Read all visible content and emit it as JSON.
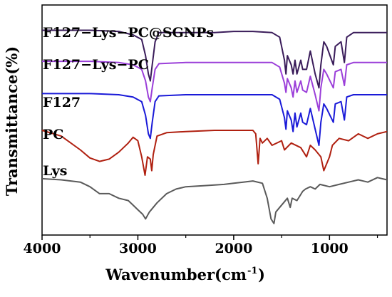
{
  "chart_data": {
    "type": "line",
    "xlabel": "Wavenumber(cm",
    "xlabel_sup": "-1",
    "xlabel_tail": ")",
    "ylabel": "Transmittance(%)",
    "x_ticks": [
      "4000",
      "3000",
      "2000",
      "1000"
    ],
    "xlim": [
      4000,
      400
    ],
    "x_reversed": true,
    "y_ticks_shown": false,
    "grid": false,
    "legend": "none (series names printed above each curve)",
    "series": [
      {
        "name": "F127−Lys−PC@SGNPs",
        "color": "#3a1c5a",
        "points": [
          [
            4000,
            0.11
          ],
          [
            3500,
            0.11
          ],
          [
            3200,
            0.115
          ],
          [
            3050,
            0.13
          ],
          [
            2960,
            0.15
          ],
          [
            2920,
            0.22
          ],
          [
            2890,
            0.3
          ],
          [
            2870,
            0.33
          ],
          [
            2850,
            0.26
          ],
          [
            2820,
            0.16
          ],
          [
            2780,
            0.12
          ],
          [
            2500,
            0.12
          ],
          [
            2200,
            0.12
          ],
          [
            2000,
            0.115
          ],
          [
            1800,
            0.115
          ],
          [
            1600,
            0.12
          ],
          [
            1520,
            0.14
          ],
          [
            1470,
            0.24
          ],
          [
            1455,
            0.3
          ],
          [
            1440,
            0.22
          ],
          [
            1400,
            0.26
          ],
          [
            1380,
            0.3
          ],
          [
            1360,
            0.24
          ],
          [
            1340,
            0.3
          ],
          [
            1300,
            0.24
          ],
          [
            1280,
            0.28
          ],
          [
            1240,
            0.28
          ],
          [
            1200,
            0.2
          ],
          [
            1150,
            0.3
          ],
          [
            1110,
            0.36
          ],
          [
            1090,
            0.26
          ],
          [
            1060,
            0.16
          ],
          [
            1030,
            0.18
          ],
          [
            960,
            0.26
          ],
          [
            940,
            0.18
          ],
          [
            880,
            0.16
          ],
          [
            845,
            0.25
          ],
          [
            820,
            0.14
          ],
          [
            750,
            0.12
          ],
          [
            500,
            0.12
          ],
          [
            400,
            0.12
          ]
        ]
      },
      {
        "name": "F127−Lys−PC",
        "color": "#9b3fd9",
        "points": [
          [
            4000,
            0.245
          ],
          [
            3500,
            0.245
          ],
          [
            3200,
            0.25
          ],
          [
            3050,
            0.26
          ],
          [
            2960,
            0.28
          ],
          [
            2920,
            0.33
          ],
          [
            2890,
            0.4
          ],
          [
            2870,
            0.42
          ],
          [
            2850,
            0.36
          ],
          [
            2820,
            0.28
          ],
          [
            2780,
            0.255
          ],
          [
            2500,
            0.25
          ],
          [
            2200,
            0.25
          ],
          [
            2000,
            0.25
          ],
          [
            1800,
            0.25
          ],
          [
            1600,
            0.25
          ],
          [
            1520,
            0.27
          ],
          [
            1470,
            0.34
          ],
          [
            1455,
            0.38
          ],
          [
            1440,
            0.32
          ],
          [
            1400,
            0.36
          ],
          [
            1380,
            0.4
          ],
          [
            1360,
            0.33
          ],
          [
            1340,
            0.38
          ],
          [
            1300,
            0.33
          ],
          [
            1280,
            0.37
          ],
          [
            1240,
            0.38
          ],
          [
            1200,
            0.31
          ],
          [
            1150,
            0.39
          ],
          [
            1110,
            0.46
          ],
          [
            1090,
            0.36
          ],
          [
            1060,
            0.28
          ],
          [
            1030,
            0.3
          ],
          [
            960,
            0.36
          ],
          [
            940,
            0.29
          ],
          [
            880,
            0.28
          ],
          [
            845,
            0.35
          ],
          [
            820,
            0.26
          ],
          [
            750,
            0.25
          ],
          [
            500,
            0.25
          ],
          [
            400,
            0.25
          ]
        ]
      },
      {
        "name": "F127",
        "color": "#1a1ad8",
        "points": [
          [
            4000,
            0.385
          ],
          [
            3500,
            0.385
          ],
          [
            3200,
            0.39
          ],
          [
            3050,
            0.4
          ],
          [
            2960,
            0.42
          ],
          [
            2920,
            0.48
          ],
          [
            2890,
            0.56
          ],
          [
            2870,
            0.58
          ],
          [
            2850,
            0.51
          ],
          [
            2820,
            0.42
          ],
          [
            2780,
            0.395
          ],
          [
            2500,
            0.39
          ],
          [
            2200,
            0.39
          ],
          [
            2000,
            0.39
          ],
          [
            1800,
            0.39
          ],
          [
            1600,
            0.39
          ],
          [
            1520,
            0.41
          ],
          [
            1470,
            0.49
          ],
          [
            1455,
            0.54
          ],
          [
            1440,
            0.46
          ],
          [
            1400,
            0.5
          ],
          [
            1380,
            0.55
          ],
          [
            1360,
            0.47
          ],
          [
            1340,
            0.53
          ],
          [
            1300,
            0.47
          ],
          [
            1280,
            0.51
          ],
          [
            1240,
            0.52
          ],
          [
            1200,
            0.45
          ],
          [
            1150,
            0.54
          ],
          [
            1110,
            0.61
          ],
          [
            1090,
            0.51
          ],
          [
            1060,
            0.43
          ],
          [
            1030,
            0.45
          ],
          [
            960,
            0.51
          ],
          [
            940,
            0.43
          ],
          [
            880,
            0.42
          ],
          [
            845,
            0.5
          ],
          [
            820,
            0.4
          ],
          [
            750,
            0.39
          ],
          [
            500,
            0.39
          ],
          [
            400,
            0.39
          ]
        ]
      },
      {
        "name": "PC",
        "color": "#b02010",
        "points": [
          [
            4000,
            0.545
          ],
          [
            3800,
            0.57
          ],
          [
            3600,
            0.63
          ],
          [
            3500,
            0.665
          ],
          [
            3400,
            0.68
          ],
          [
            3300,
            0.67
          ],
          [
            3200,
            0.64
          ],
          [
            3100,
            0.6
          ],
          [
            3050,
            0.575
          ],
          [
            3000,
            0.59
          ],
          [
            2960,
            0.66
          ],
          [
            2925,
            0.74
          ],
          [
            2900,
            0.66
          ],
          [
            2870,
            0.67
          ],
          [
            2855,
            0.72
          ],
          [
            2840,
            0.65
          ],
          [
            2800,
            0.57
          ],
          [
            2700,
            0.555
          ],
          [
            2500,
            0.55
          ],
          [
            2200,
            0.545
          ],
          [
            2000,
            0.545
          ],
          [
            1800,
            0.545
          ],
          [
            1770,
            0.56
          ],
          [
            1745,
            0.69
          ],
          [
            1725,
            0.58
          ],
          [
            1700,
            0.6
          ],
          [
            1650,
            0.58
          ],
          [
            1600,
            0.61
          ],
          [
            1500,
            0.59
          ],
          [
            1470,
            0.63
          ],
          [
            1400,
            0.6
          ],
          [
            1300,
            0.62
          ],
          [
            1240,
            0.66
          ],
          [
            1200,
            0.61
          ],
          [
            1150,
            0.63
          ],
          [
            1090,
            0.66
          ],
          [
            1060,
            0.72
          ],
          [
            1000,
            0.66
          ],
          [
            970,
            0.61
          ],
          [
            900,
            0.58
          ],
          [
            800,
            0.59
          ],
          [
            700,
            0.56
          ],
          [
            600,
            0.58
          ],
          [
            500,
            0.56
          ],
          [
            400,
            0.55
          ]
        ]
      },
      {
        "name": "Lys",
        "color": "#5a5a5a",
        "points": [
          [
            4000,
            0.755
          ],
          [
            3800,
            0.76
          ],
          [
            3600,
            0.77
          ],
          [
            3500,
            0.79
          ],
          [
            3400,
            0.82
          ],
          [
            3300,
            0.82
          ],
          [
            3200,
            0.84
          ],
          [
            3100,
            0.85
          ],
          [
            3050,
            0.87
          ],
          [
            3000,
            0.89
          ],
          [
            2950,
            0.91
          ],
          [
            2920,
            0.93
          ],
          [
            2880,
            0.9
          ],
          [
            2800,
            0.86
          ],
          [
            2700,
            0.82
          ],
          [
            2600,
            0.8
          ],
          [
            2500,
            0.79
          ],
          [
            2300,
            0.785
          ],
          [
            2100,
            0.78
          ],
          [
            2000,
            0.775
          ],
          [
            1900,
            0.77
          ],
          [
            1800,
            0.765
          ],
          [
            1700,
            0.775
          ],
          [
            1650,
            0.84
          ],
          [
            1610,
            0.93
          ],
          [
            1580,
            0.95
          ],
          [
            1560,
            0.9
          ],
          [
            1520,
            0.88
          ],
          [
            1480,
            0.86
          ],
          [
            1440,
            0.84
          ],
          [
            1410,
            0.88
          ],
          [
            1390,
            0.84
          ],
          [
            1340,
            0.85
          ],
          [
            1310,
            0.83
          ],
          [
            1280,
            0.81
          ],
          [
            1250,
            0.8
          ],
          [
            1200,
            0.79
          ],
          [
            1150,
            0.8
          ],
          [
            1100,
            0.78
          ],
          [
            1000,
            0.79
          ],
          [
            900,
            0.78
          ],
          [
            800,
            0.77
          ],
          [
            700,
            0.76
          ],
          [
            600,
            0.77
          ],
          [
            500,
            0.75
          ],
          [
            400,
            0.76
          ]
        ]
      }
    ]
  }
}
